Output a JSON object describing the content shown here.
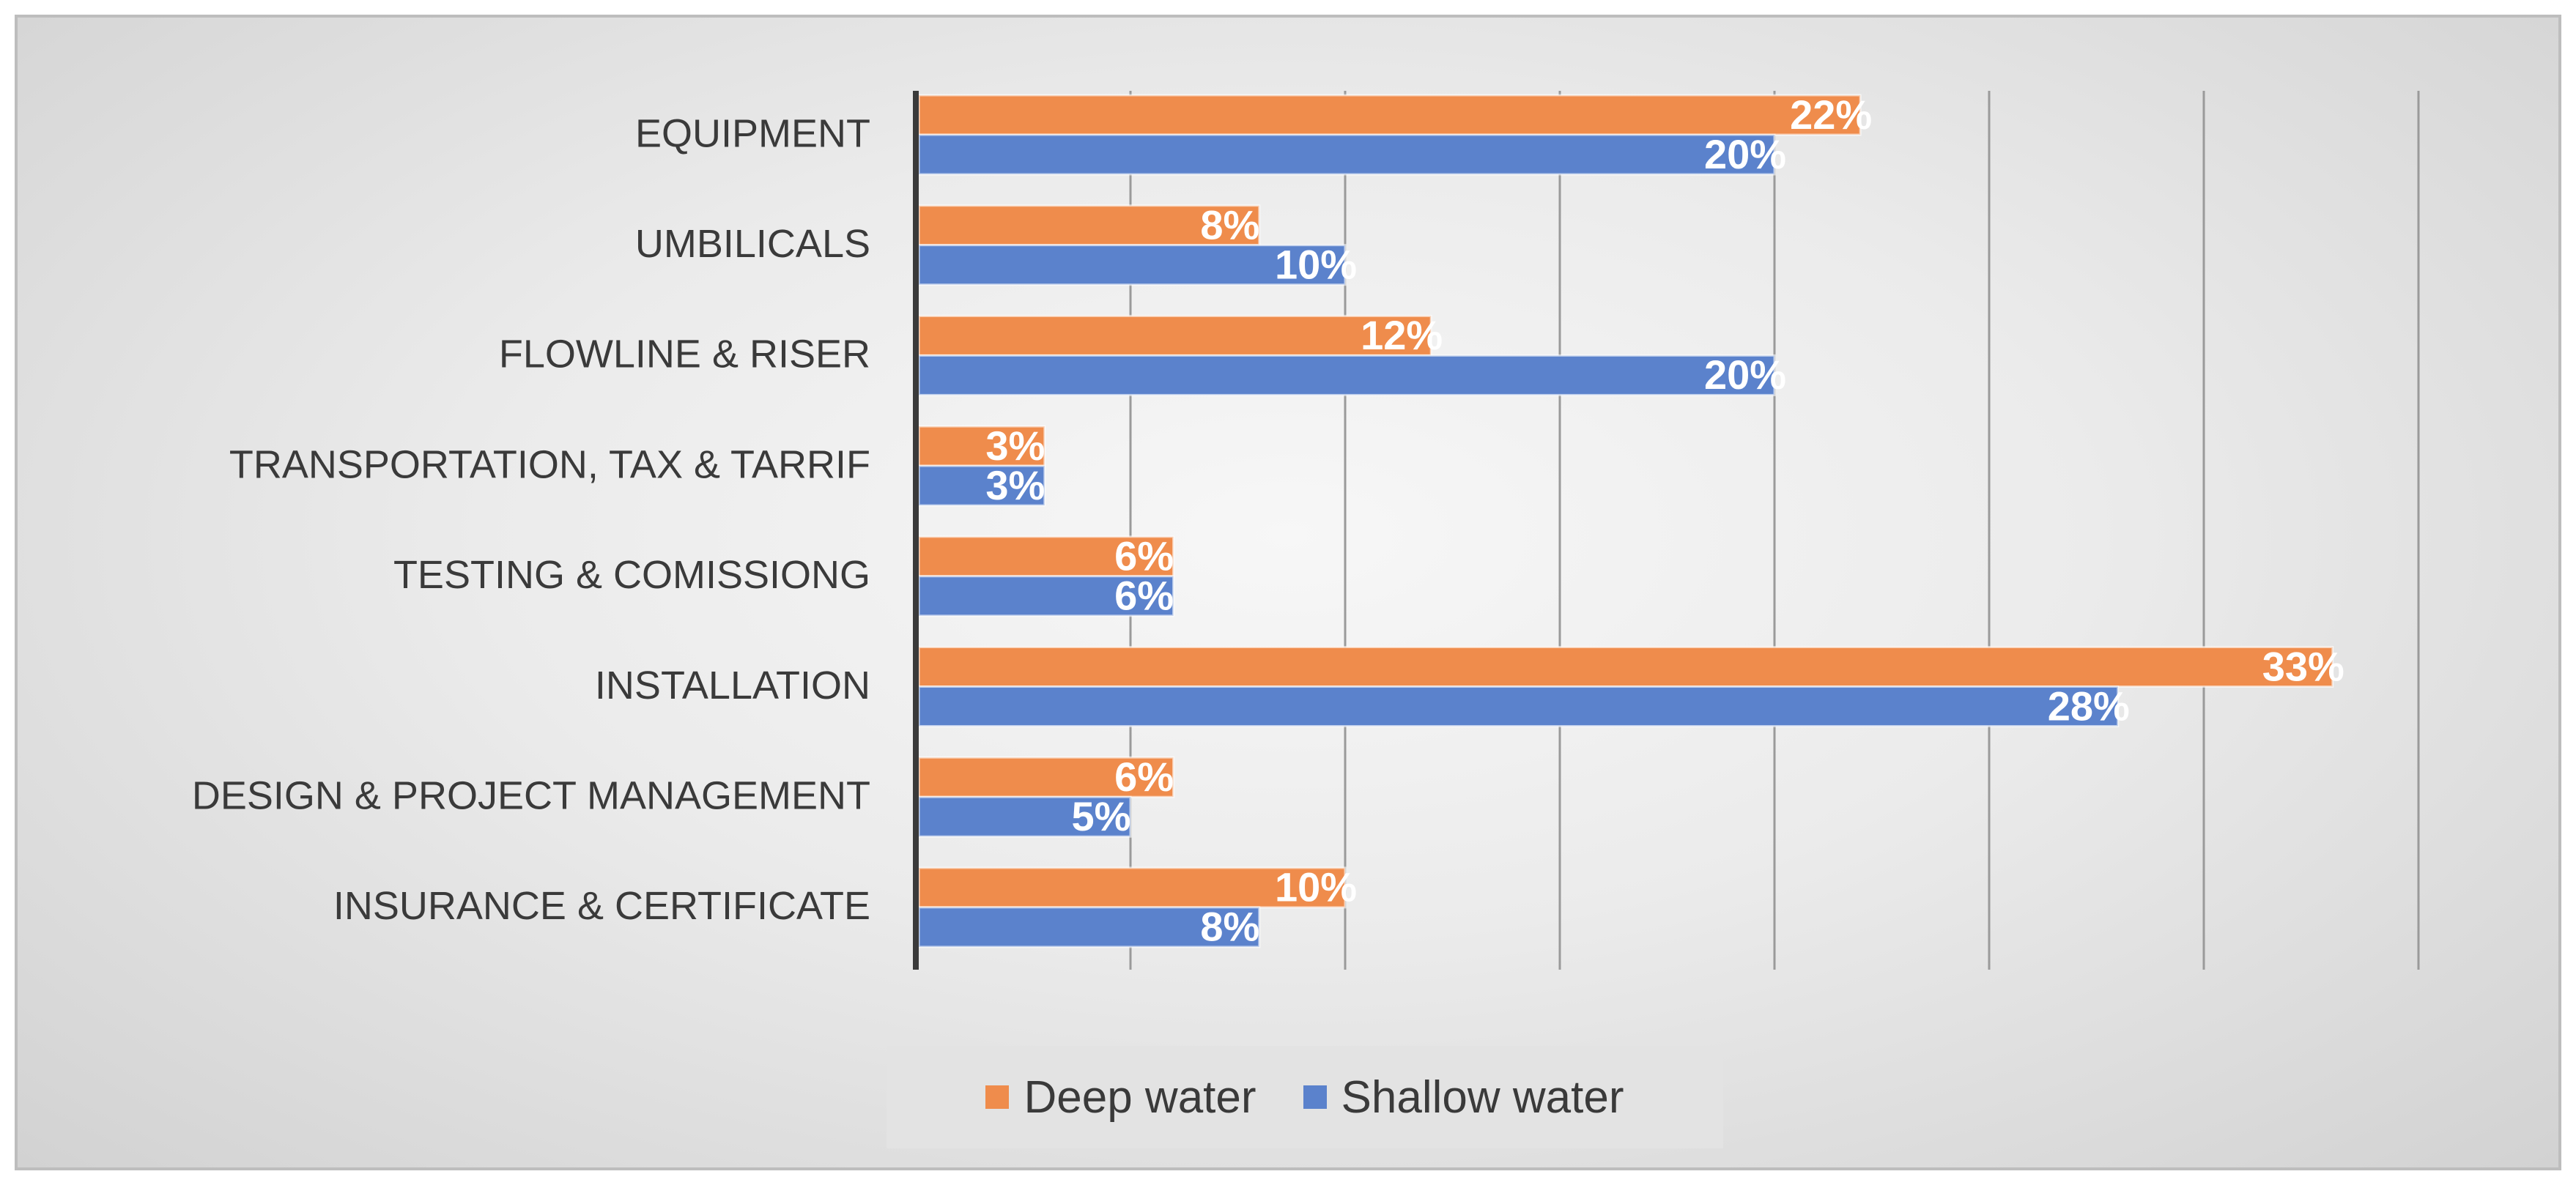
{
  "chart_data": {
    "type": "bar",
    "orientation": "horizontal",
    "categories": [
      "EQUIPMENT",
      "UMBILICALS",
      "FLOWLINE & RISER",
      "TRANSPORTATION, TAX & TARRIF",
      "TESTING & COMISSIONG",
      "INSTALLATION",
      "DESIGN & PROJECT MANAGEMENT",
      "INSURANCE & CERTIFICATE"
    ],
    "series": [
      {
        "name": "Deep water",
        "color": "#ef8c4c",
        "values": [
          22,
          8,
          12,
          3,
          6,
          33,
          6,
          10
        ],
        "labels": [
          "22%",
          "8%",
          "12%",
          "3%",
          "6%",
          "33%",
          "6%",
          "10%"
        ]
      },
      {
        "name": "Shallow water",
        "color": "#5b82cc",
        "values": [
          20,
          10,
          20,
          3,
          6,
          28,
          5,
          8
        ],
        "labels": [
          "20%",
          "10%",
          "20%",
          "3%",
          "6%",
          "28%",
          "5%",
          "8%"
        ]
      }
    ],
    "xlim": [
      0,
      35
    ],
    "x_gridline_step": 5,
    "grid": true,
    "legend_position": "bottom"
  }
}
